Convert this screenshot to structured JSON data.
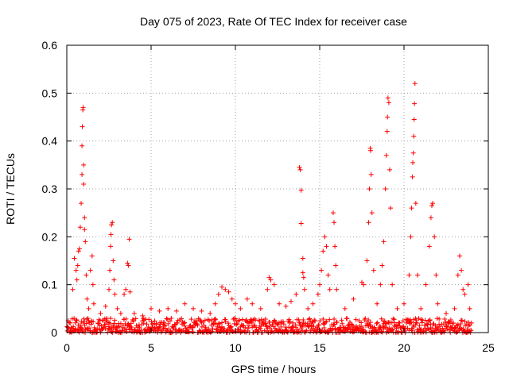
{
  "chart_data": {
    "type": "scatter",
    "title": "Day 075 of 2023, Rate Of TEC Index for receiver case",
    "xlabel": "GPS time / hours",
    "ylabel": "ROTI / TECUs",
    "xlim": [
      0,
      25
    ],
    "ylim": [
      0,
      0.6
    ],
    "xticks": [
      0,
      5,
      10,
      15,
      20,
      25
    ],
    "yticks": [
      0,
      0.1,
      0.2,
      0.3,
      0.4,
      0.5,
      0.6
    ],
    "xtick_labels": [
      "0",
      "5",
      "10",
      "15",
      "20",
      "25"
    ],
    "ytick_labels": [
      "0",
      "0.1",
      "0.2",
      "0.3",
      "0.4",
      "0.5",
      "0.6"
    ],
    "grid": true,
    "marker": "plus",
    "color": "#ff0000",
    "baseline": {
      "x_range": [
        0,
        24
      ],
      "y_range": [
        0.0,
        0.03
      ]
    },
    "series": [
      {
        "values": [
          [
            0.2,
            0.02
          ],
          [
            0.35,
            0.09
          ],
          [
            0.45,
            0.155
          ],
          [
            0.55,
            0.13
          ],
          [
            0.6,
            0.11
          ],
          [
            0.65,
            0.14
          ],
          [
            0.7,
            0.17
          ],
          [
            0.75,
            0.175
          ],
          [
            0.8,
            0.22
          ],
          [
            0.85,
            0.27
          ],
          [
            0.9,
            0.33
          ],
          [
            0.9,
            0.39
          ],
          [
            0.92,
            0.43
          ],
          [
            0.95,
            0.465
          ],
          [
            0.97,
            0.47
          ],
          [
            1.0,
            0.35
          ],
          [
            1.0,
            0.31
          ],
          [
            1.05,
            0.24
          ],
          [
            1.05,
            0.215
          ],
          [
            1.1,
            0.19
          ],
          [
            1.15,
            0.12
          ],
          [
            1.2,
            0.07
          ],
          [
            1.3,
            0.05
          ],
          [
            1.4,
            0.13
          ],
          [
            1.5,
            0.16
          ],
          [
            1.55,
            0.1
          ],
          [
            1.6,
            0.06
          ],
          [
            2.0,
            0.04
          ],
          [
            2.3,
            0.055
          ],
          [
            2.5,
            0.09
          ],
          [
            2.55,
            0.13
          ],
          [
            2.6,
            0.18
          ],
          [
            2.62,
            0.205
          ],
          [
            2.65,
            0.225
          ],
          [
            2.7,
            0.23
          ],
          [
            2.75,
            0.15
          ],
          [
            2.8,
            0.11
          ],
          [
            2.85,
            0.08
          ],
          [
            3.0,
            0.05
          ],
          [
            3.2,
            0.04
          ],
          [
            3.4,
            0.08
          ],
          [
            3.5,
            0.09
          ],
          [
            3.6,
            0.145
          ],
          [
            3.65,
            0.14
          ],
          [
            3.7,
            0.195
          ],
          [
            3.75,
            0.085
          ],
          [
            4.0,
            0.04
          ],
          [
            4.5,
            0.035
          ],
          [
            5.0,
            0.05
          ],
          [
            5.5,
            0.045
          ],
          [
            6.0,
            0.05
          ],
          [
            6.5,
            0.045
          ],
          [
            7.0,
            0.06
          ],
          [
            7.5,
            0.05
          ],
          [
            8.0,
            0.045
          ],
          [
            8.5,
            0.04
          ],
          [
            8.8,
            0.06
          ],
          [
            9.0,
            0.08
          ],
          [
            9.2,
            0.095
          ],
          [
            9.4,
            0.09
          ],
          [
            9.6,
            0.085
          ],
          [
            9.8,
            0.07
          ],
          [
            10.0,
            0.06
          ],
          [
            10.3,
            0.05
          ],
          [
            10.7,
            0.07
          ],
          [
            11.0,
            0.06
          ],
          [
            11.5,
            0.05
          ],
          [
            11.9,
            0.09
          ],
          [
            12.0,
            0.115
          ],
          [
            12.1,
            0.11
          ],
          [
            12.3,
            0.1
          ],
          [
            12.6,
            0.06
          ],
          [
            13.0,
            0.055
          ],
          [
            13.3,
            0.065
          ],
          [
            13.6,
            0.08
          ],
          [
            13.8,
            0.345
          ],
          [
            13.85,
            0.34
          ],
          [
            13.9,
            0.297
          ],
          [
            13.9,
            0.228
          ],
          [
            14.0,
            0.155
          ],
          [
            14.0,
            0.125
          ],
          [
            14.05,
            0.115
          ],
          [
            14.1,
            0.09
          ],
          [
            14.3,
            0.05
          ],
          [
            14.6,
            0.06
          ],
          [
            14.9,
            0.08
          ],
          [
            15.0,
            0.1
          ],
          [
            15.1,
            0.13
          ],
          [
            15.2,
            0.17
          ],
          [
            15.3,
            0.2
          ],
          [
            15.4,
            0.18
          ],
          [
            15.5,
            0.12
          ],
          [
            15.6,
            0.09
          ],
          [
            15.8,
            0.25
          ],
          [
            15.85,
            0.23
          ],
          [
            15.9,
            0.18
          ],
          [
            15.95,
            0.14
          ],
          [
            16.0,
            0.09
          ],
          [
            16.5,
            0.05
          ],
          [
            17.0,
            0.07
          ],
          [
            17.5,
            0.105
          ],
          [
            17.6,
            0.1
          ],
          [
            17.8,
            0.15
          ],
          [
            17.9,
            0.23
          ],
          [
            17.95,
            0.3
          ],
          [
            18.0,
            0.385
          ],
          [
            18.02,
            0.38
          ],
          [
            18.05,
            0.33
          ],
          [
            18.1,
            0.25
          ],
          [
            18.2,
            0.13
          ],
          [
            18.4,
            0.06
          ],
          [
            18.6,
            0.1
          ],
          [
            18.7,
            0.14
          ],
          [
            18.8,
            0.19
          ],
          [
            18.9,
            0.3
          ],
          [
            18.95,
            0.37
          ],
          [
            19.0,
            0.42
          ],
          [
            19.02,
            0.45
          ],
          [
            19.05,
            0.49
          ],
          [
            19.1,
            0.48
          ],
          [
            19.15,
            0.34
          ],
          [
            19.2,
            0.26
          ],
          [
            19.3,
            0.1
          ],
          [
            19.6,
            0.05
          ],
          [
            20.0,
            0.06
          ],
          [
            20.3,
            0.12
          ],
          [
            20.4,
            0.2
          ],
          [
            20.45,
            0.26
          ],
          [
            20.5,
            0.325
          ],
          [
            20.52,
            0.355
          ],
          [
            20.55,
            0.375
          ],
          [
            20.58,
            0.41
          ],
          [
            20.6,
            0.445
          ],
          [
            20.62,
            0.478
          ],
          [
            20.65,
            0.52
          ],
          [
            20.7,
            0.27
          ],
          [
            20.8,
            0.12
          ],
          [
            21.0,
            0.05
          ],
          [
            21.3,
            0.1
          ],
          [
            21.5,
            0.18
          ],
          [
            21.6,
            0.24
          ],
          [
            21.65,
            0.265
          ],
          [
            21.7,
            0.27
          ],
          [
            21.8,
            0.2
          ],
          [
            21.9,
            0.12
          ],
          [
            22.0,
            0.06
          ],
          [
            22.5,
            0.04
          ],
          [
            23.0,
            0.05
          ],
          [
            23.2,
            0.12
          ],
          [
            23.3,
            0.16
          ],
          [
            23.4,
            0.13
          ],
          [
            23.5,
            0.09
          ],
          [
            23.6,
            0.08
          ],
          [
            23.8,
            0.1
          ],
          [
            23.9,
            0.05
          ],
          [
            24.0,
            0.02
          ]
        ]
      }
    ]
  }
}
